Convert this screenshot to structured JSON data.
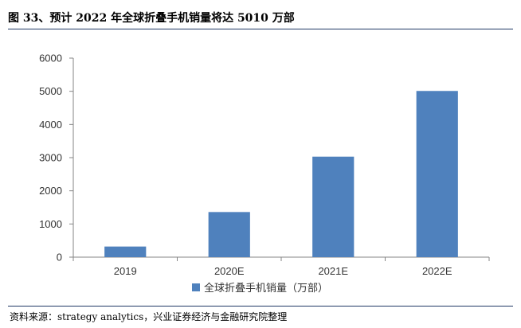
{
  "header": {
    "title": "图 33、预计 2022 年全球折叠手机销量将达 5010 万部"
  },
  "footer": {
    "source": "资料来源：strategy analytics，兴业证券经济与金融研究院整理"
  },
  "chart_data": {
    "type": "bar",
    "categories": [
      "2019",
      "2020E",
      "2021E",
      "2022E"
    ],
    "series": [
      {
        "name": "全球折叠手机销量（万部）",
        "values": [
          320,
          1360,
          3030,
          5010
        ],
        "color": "#4f81bd"
      }
    ],
    "ylim": [
      0,
      6000
    ],
    "yticks": [
      "0",
      "1000",
      "2000",
      "3000",
      "4000",
      "5000",
      "6000"
    ],
    "grid": false,
    "legend": "bottom"
  }
}
